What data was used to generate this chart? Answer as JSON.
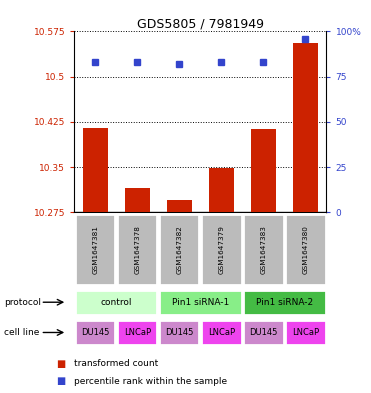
{
  "title": "GDS5805 / 7981949",
  "samples": [
    "GSM1647381",
    "GSM1647378",
    "GSM1647382",
    "GSM1647379",
    "GSM1647383",
    "GSM1647380"
  ],
  "red_values": [
    10.415,
    10.315,
    10.295,
    10.348,
    10.413,
    10.555
  ],
  "blue_values": [
    83,
    83,
    82,
    83,
    83,
    96
  ],
  "y_min": 10.275,
  "y_max": 10.575,
  "y_ticks": [
    10.275,
    10.35,
    10.425,
    10.5,
    10.575
  ],
  "y_tick_labels": [
    "10.275",
    "10.35",
    "10.425",
    "10.5",
    "10.575"
  ],
  "y2_ticks": [
    0,
    25,
    50,
    75,
    100
  ],
  "y2_tick_labels": [
    "0",
    "25",
    "50",
    "75",
    "100%"
  ],
  "protocol_groups": [
    {
      "label": "control",
      "start": 0,
      "end": 2,
      "color": "#ccffcc"
    },
    {
      "label": "Pin1 siRNA-1",
      "start": 2,
      "end": 4,
      "color": "#88ee88"
    },
    {
      "label": "Pin1 siRNA-2",
      "start": 4,
      "end": 6,
      "color": "#44bb44"
    }
  ],
  "cell_lines": [
    "DU145",
    "LNCaP",
    "DU145",
    "LNCaP",
    "DU145",
    "LNCaP"
  ],
  "cell_line_colors": [
    "#cc88cc",
    "#ee44ee",
    "#cc88cc",
    "#ee44ee",
    "#cc88cc",
    "#ee44ee"
  ],
  "red_color": "#cc2200",
  "blue_color": "#3344cc",
  "bar_width": 0.6,
  "sample_bg_color": "#bbbbbb",
  "legend_red": "transformed count",
  "legend_blue": "percentile rank within the sample"
}
